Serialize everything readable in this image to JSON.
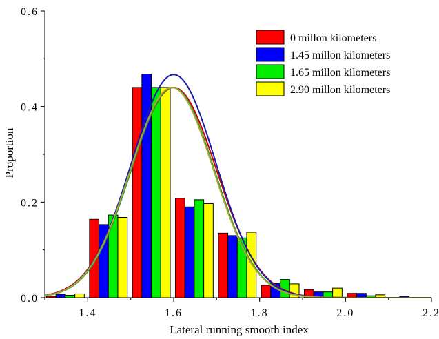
{
  "chart_data": {
    "type": "bar",
    "xlabel": "Lateral running smooth index",
    "ylabel": "Proportion",
    "xlim": [
      1.3,
      2.2
    ],
    "ylim": [
      0,
      0.6
    ],
    "xticks": [
      1.4,
      1.6,
      1.8,
      2.0,
      2.2
    ],
    "xtick_labels": [
      "1.4",
      "1.6",
      "1.8",
      "2.0",
      "2.2"
    ],
    "yticks": [
      0,
      0.2,
      0.4,
      0.6
    ],
    "ytick_labels": [
      "0.0",
      "0.2",
      "0.4",
      "0.6"
    ],
    "bin_centers": [
      1.35,
      1.45,
      1.55,
      1.65,
      1.75,
      1.85,
      1.95,
      2.05,
      2.15
    ],
    "legend_position": "top-right",
    "grid": false,
    "series": [
      {
        "name": "0 millon kilometers",
        "color": "#ff0000",
        "values": [
          0.003,
          0.164,
          0.44,
          0.208,
          0.135,
          0.026,
          0.017,
          0.009,
          0.0
        ],
        "fit": {
          "mean": 1.6,
          "sd": 0.1,
          "peak": 0.44,
          "color": "#cc0000"
        }
      },
      {
        "name": "1.45 millon kilometers",
        "color": "#0000ff",
        "values": [
          0.007,
          0.153,
          0.468,
          0.19,
          0.13,
          0.03,
          0.012,
          0.009,
          0.003
        ],
        "fit": {
          "mean": 1.6,
          "sd": 0.098,
          "peak": 0.467,
          "color": "#1a1aa8"
        }
      },
      {
        "name": "1.65 millon kilometers",
        "color": "#00ee00",
        "values": [
          0.005,
          0.173,
          0.44,
          0.205,
          0.125,
          0.038,
          0.012,
          0.004,
          0.0
        ],
        "fit": {
          "mean": 1.598,
          "sd": 0.097,
          "peak": 0.44,
          "color": "#2a9d2a"
        }
      },
      {
        "name": "2.90 millon kilometers",
        "color": "#ffff00",
        "values": [
          0.008,
          0.168,
          0.44,
          0.197,
          0.137,
          0.029,
          0.02,
          0.006,
          0.0
        ],
        "fit": {
          "mean": 1.596,
          "sd": 0.097,
          "peak": 0.44,
          "color": "#a9a63a"
        }
      }
    ]
  }
}
